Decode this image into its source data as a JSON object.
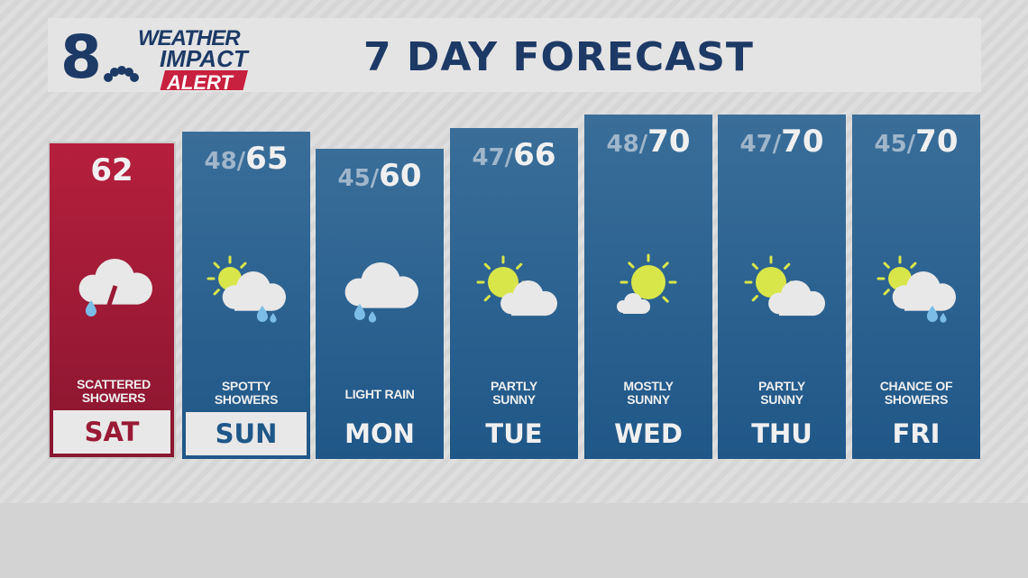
{
  "header": {
    "logo_text": "8 WEATHER IMPACT ALERT",
    "title": "7 DAY FORECAST"
  },
  "colors": {
    "blue": "#1f5788",
    "red": "#a01c37",
    "sun": "#d8e64a",
    "rain": "#7bbde6",
    "cloud": "#e8e8e8"
  },
  "days": [
    {
      "day": "SAT",
      "low": "",
      "high": "62",
      "condition": "SCATTERED SHOWERS",
      "icon": "thunder-showers-icon"
    },
    {
      "day": "SUN",
      "low": "48",
      "high": "65",
      "condition": "SPOTTY SHOWERS",
      "icon": "sun-cloud-rain-icon"
    },
    {
      "day": "MON",
      "low": "45",
      "high": "60",
      "condition": "LIGHT RAIN",
      "icon": "cloud-rain-icon"
    },
    {
      "day": "TUE",
      "low": "47",
      "high": "66",
      "condition": "PARTLY SUNNY",
      "icon": "partly-sunny-icon"
    },
    {
      "day": "WED",
      "low": "48",
      "high": "70",
      "condition": "MOSTLY SUNNY",
      "icon": "mostly-sunny-icon"
    },
    {
      "day": "THU",
      "low": "47",
      "high": "70",
      "condition": "PARTLY SUNNY",
      "icon": "partly-sunny-icon"
    },
    {
      "day": "FRI",
      "low": "45",
      "high": "70",
      "condition": "CHANCE OF SHOWERS",
      "icon": "sun-cloud-rain-icon"
    }
  ]
}
